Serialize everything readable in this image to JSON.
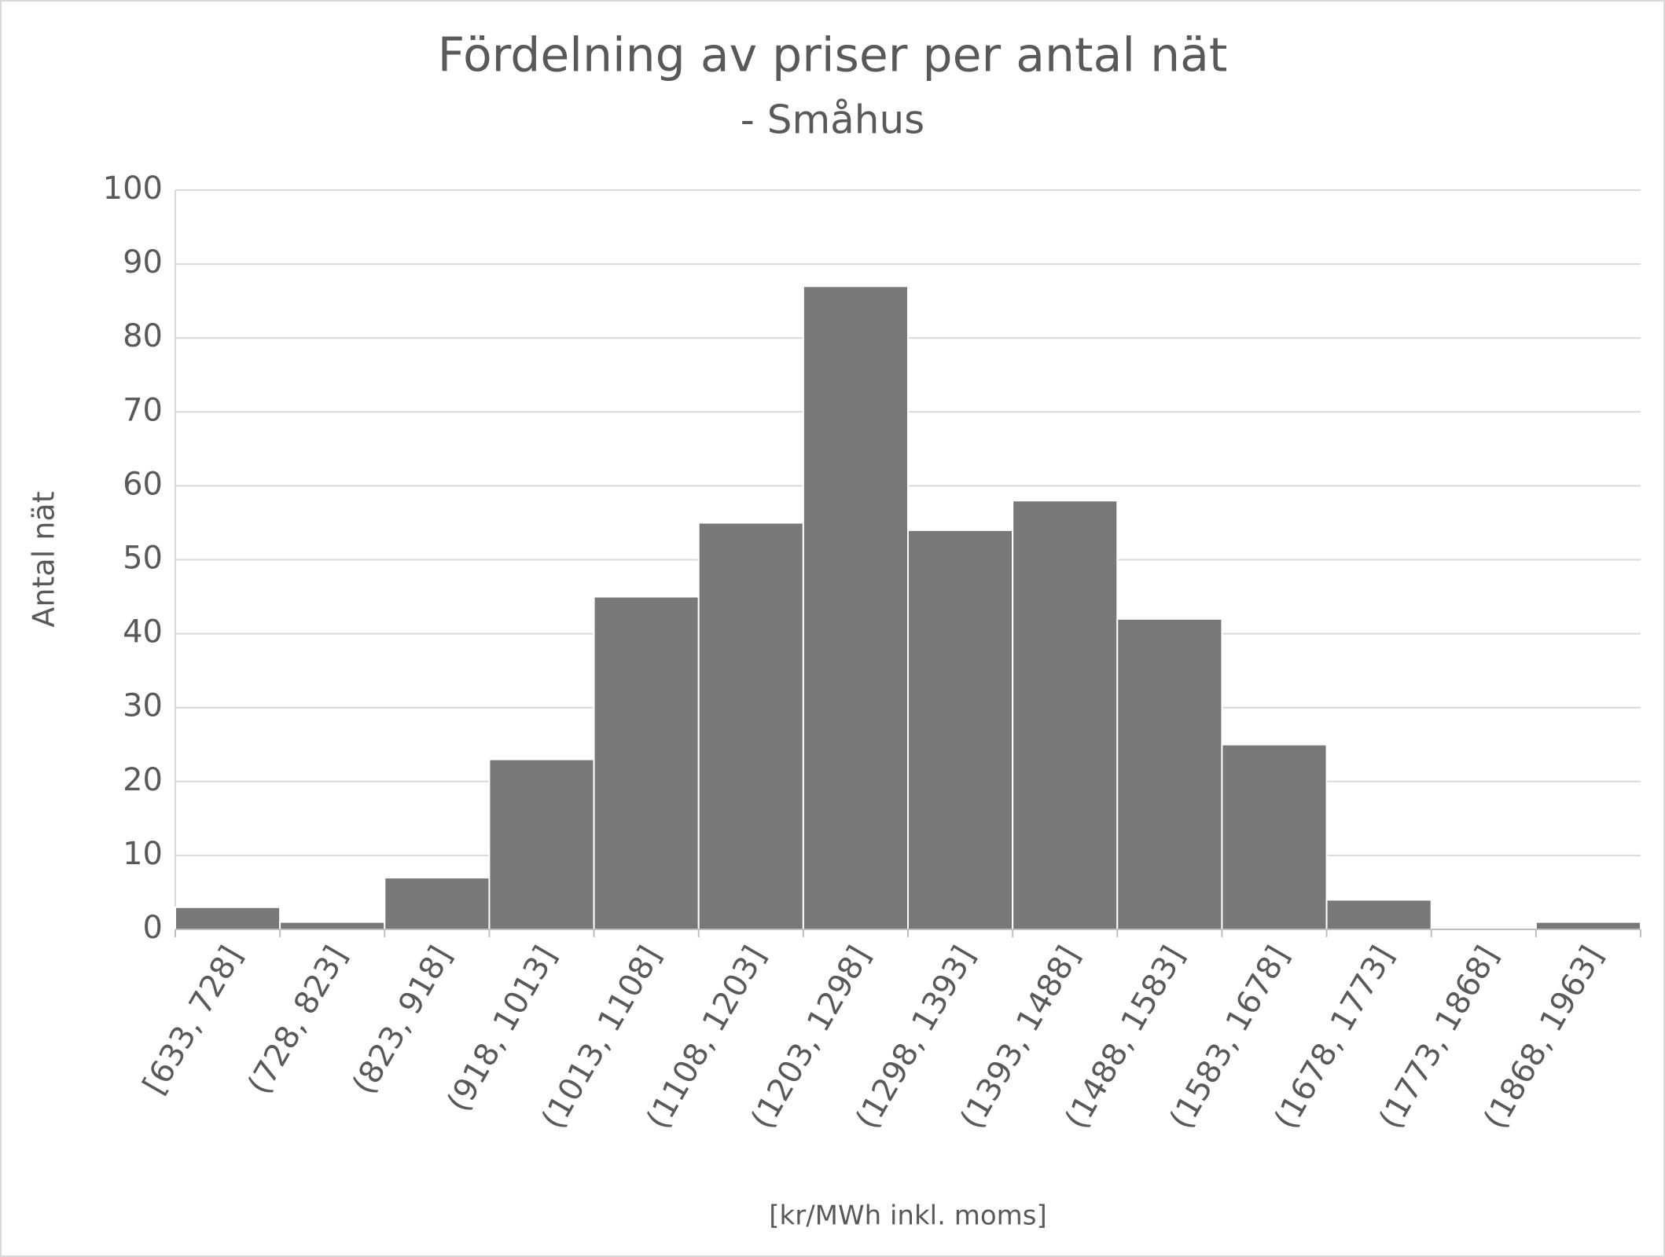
{
  "chart_data": {
    "type": "bar",
    "title": "Fördelning av priser per antal nät",
    "subtitle": "- Småhus",
    "y_label": "Antal nät",
    "x_label": "[kr/MWh inkl. moms]",
    "categories": [
      "[633, 728]",
      "(728, 823]",
      "(823, 918]",
      "(918, 1013]",
      "(1013, 1108]",
      "(1108, 1203]",
      "(1203, 1298]",
      "(1298, 1393]",
      "(1393, 1488]",
      "(1488, 1583]",
      "(1583, 1678]",
      "(1678, 1773]",
      "(1773, 1868]",
      "(1868, 1963]"
    ],
    "values": [
      3,
      1,
      7,
      23,
      45,
      55,
      87,
      54,
      58,
      42,
      25,
      4,
      0,
      1
    ],
    "color": "#787878",
    "ylim": [
      0,
      100
    ],
    "yticks": [
      0,
      10,
      20,
      30,
      40,
      50,
      60,
      70,
      80,
      90,
      100
    ],
    "grid": true
  }
}
